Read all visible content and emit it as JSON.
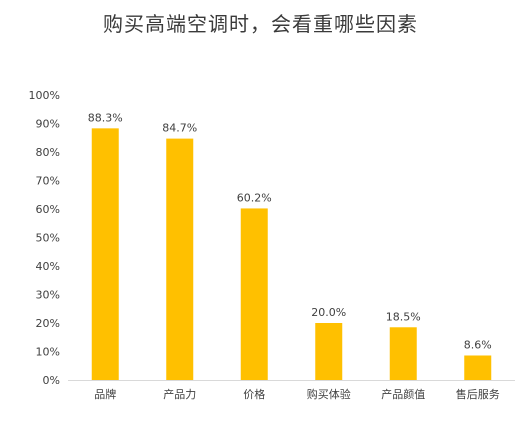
{
  "chart_data": {
    "type": "bar",
    "title": "购买高端空调时，会看重哪些因素",
    "categories": [
      "品牌",
      "产品力",
      "价格",
      "购买体验",
      "产品颜值",
      "售后服务"
    ],
    "values": [
      88.3,
      84.7,
      60.2,
      20.0,
      18.5,
      8.6
    ],
    "value_labels": [
      "88.3%",
      "84.7%",
      "60.2%",
      "20.0%",
      "18.5%",
      "8.6%"
    ],
    "yticks": [
      0,
      10,
      20,
      30,
      40,
      50,
      60,
      70,
      80,
      90,
      100
    ],
    "ytick_labels": [
      "0%",
      "10%",
      "20%",
      "30%",
      "40%",
      "50%",
      "60%",
      "70%",
      "80%",
      "90%",
      "100%"
    ],
    "ylim": [
      0,
      100
    ],
    "grid": false,
    "legend": "none",
    "bar_color": "#FFC000",
    "axis_color": "#d9d9d9"
  }
}
